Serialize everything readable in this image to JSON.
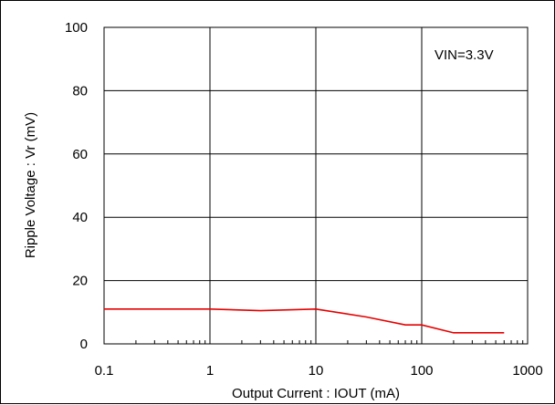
{
  "chart_data": {
    "type": "line",
    "title": "",
    "xlabel": "Output Current : IOUT (mA)",
    "ylabel": "Ripple Voltage : Vr (mV)",
    "x_scale": "log",
    "xlim": [
      0.1,
      1000
    ],
    "ylim": [
      0,
      100
    ],
    "x_ticks": [
      "0.1",
      "1",
      "10",
      "100",
      "1000"
    ],
    "y_ticks": [
      "0",
      "20",
      "40",
      "60",
      "80",
      "100"
    ],
    "grid": true,
    "annotation": "VIN=3.3V",
    "series": [
      {
        "color": "#e60000",
        "x": [
          0.1,
          1,
          3,
          10,
          30,
          70,
          100,
          200,
          600
        ],
        "y": [
          11,
          11,
          10.5,
          11,
          8.5,
          6,
          6,
          3.5,
          3.5
        ]
      }
    ]
  }
}
